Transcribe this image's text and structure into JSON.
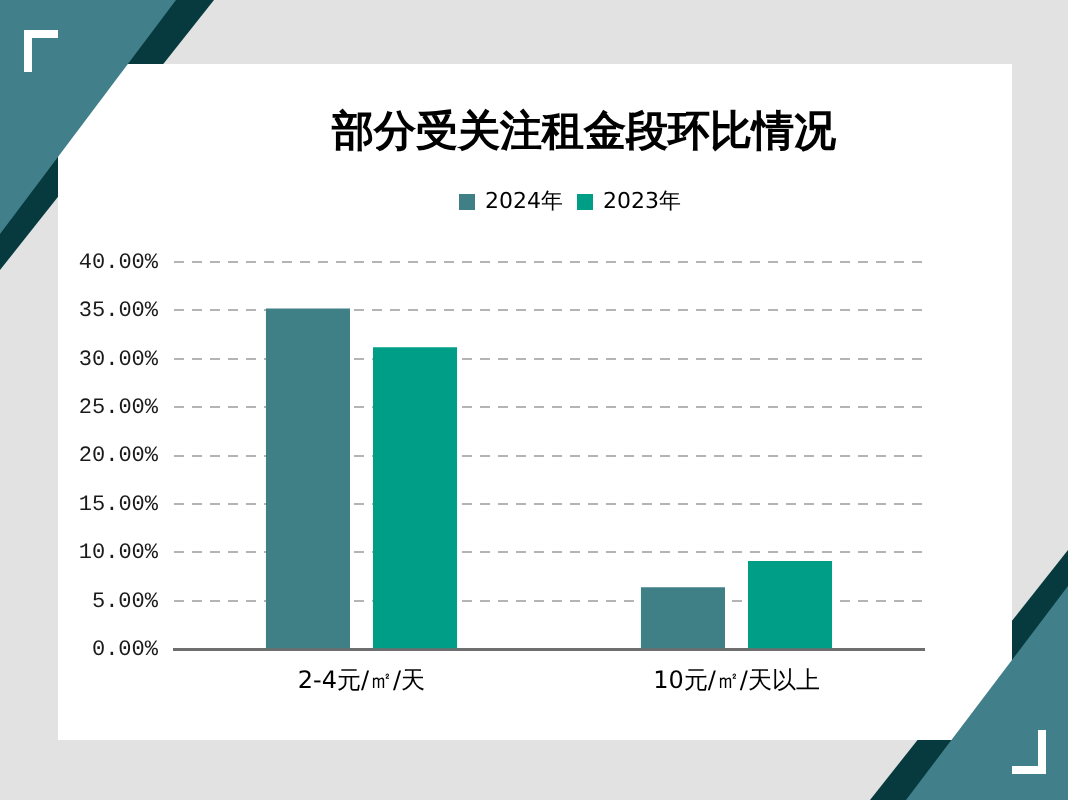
{
  "chart_data": {
    "type": "bar",
    "title": "部分受关注租金段环比情况",
    "categories": [
      "2-4元/㎡/天",
      "10元/㎡/天以上"
    ],
    "series": [
      {
        "name": "2024年",
        "color": "#3f7f86",
        "values": [
          35.2,
          6.4
        ]
      },
      {
        "name": "2023年",
        "color": "#009e86",
        "values": [
          31.2,
          9.1
        ]
      }
    ],
    "ylim": [
      0,
      40
    ],
    "yticks": [
      {
        "value": 0,
        "label": "0.00%"
      },
      {
        "value": 5,
        "label": "5.00%"
      },
      {
        "value": 10,
        "label": "10.00%"
      },
      {
        "value": 15,
        "label": "15.00%"
      },
      {
        "value": 20,
        "label": "20.00%"
      },
      {
        "value": 25,
        "label": "25.00%"
      },
      {
        "value": 30,
        "label": "30.00%"
      },
      {
        "value": 35,
        "label": "35.00%"
      },
      {
        "value": 40,
        "label": "40.00%"
      }
    ],
    "grid": "y",
    "legend": "top"
  }
}
